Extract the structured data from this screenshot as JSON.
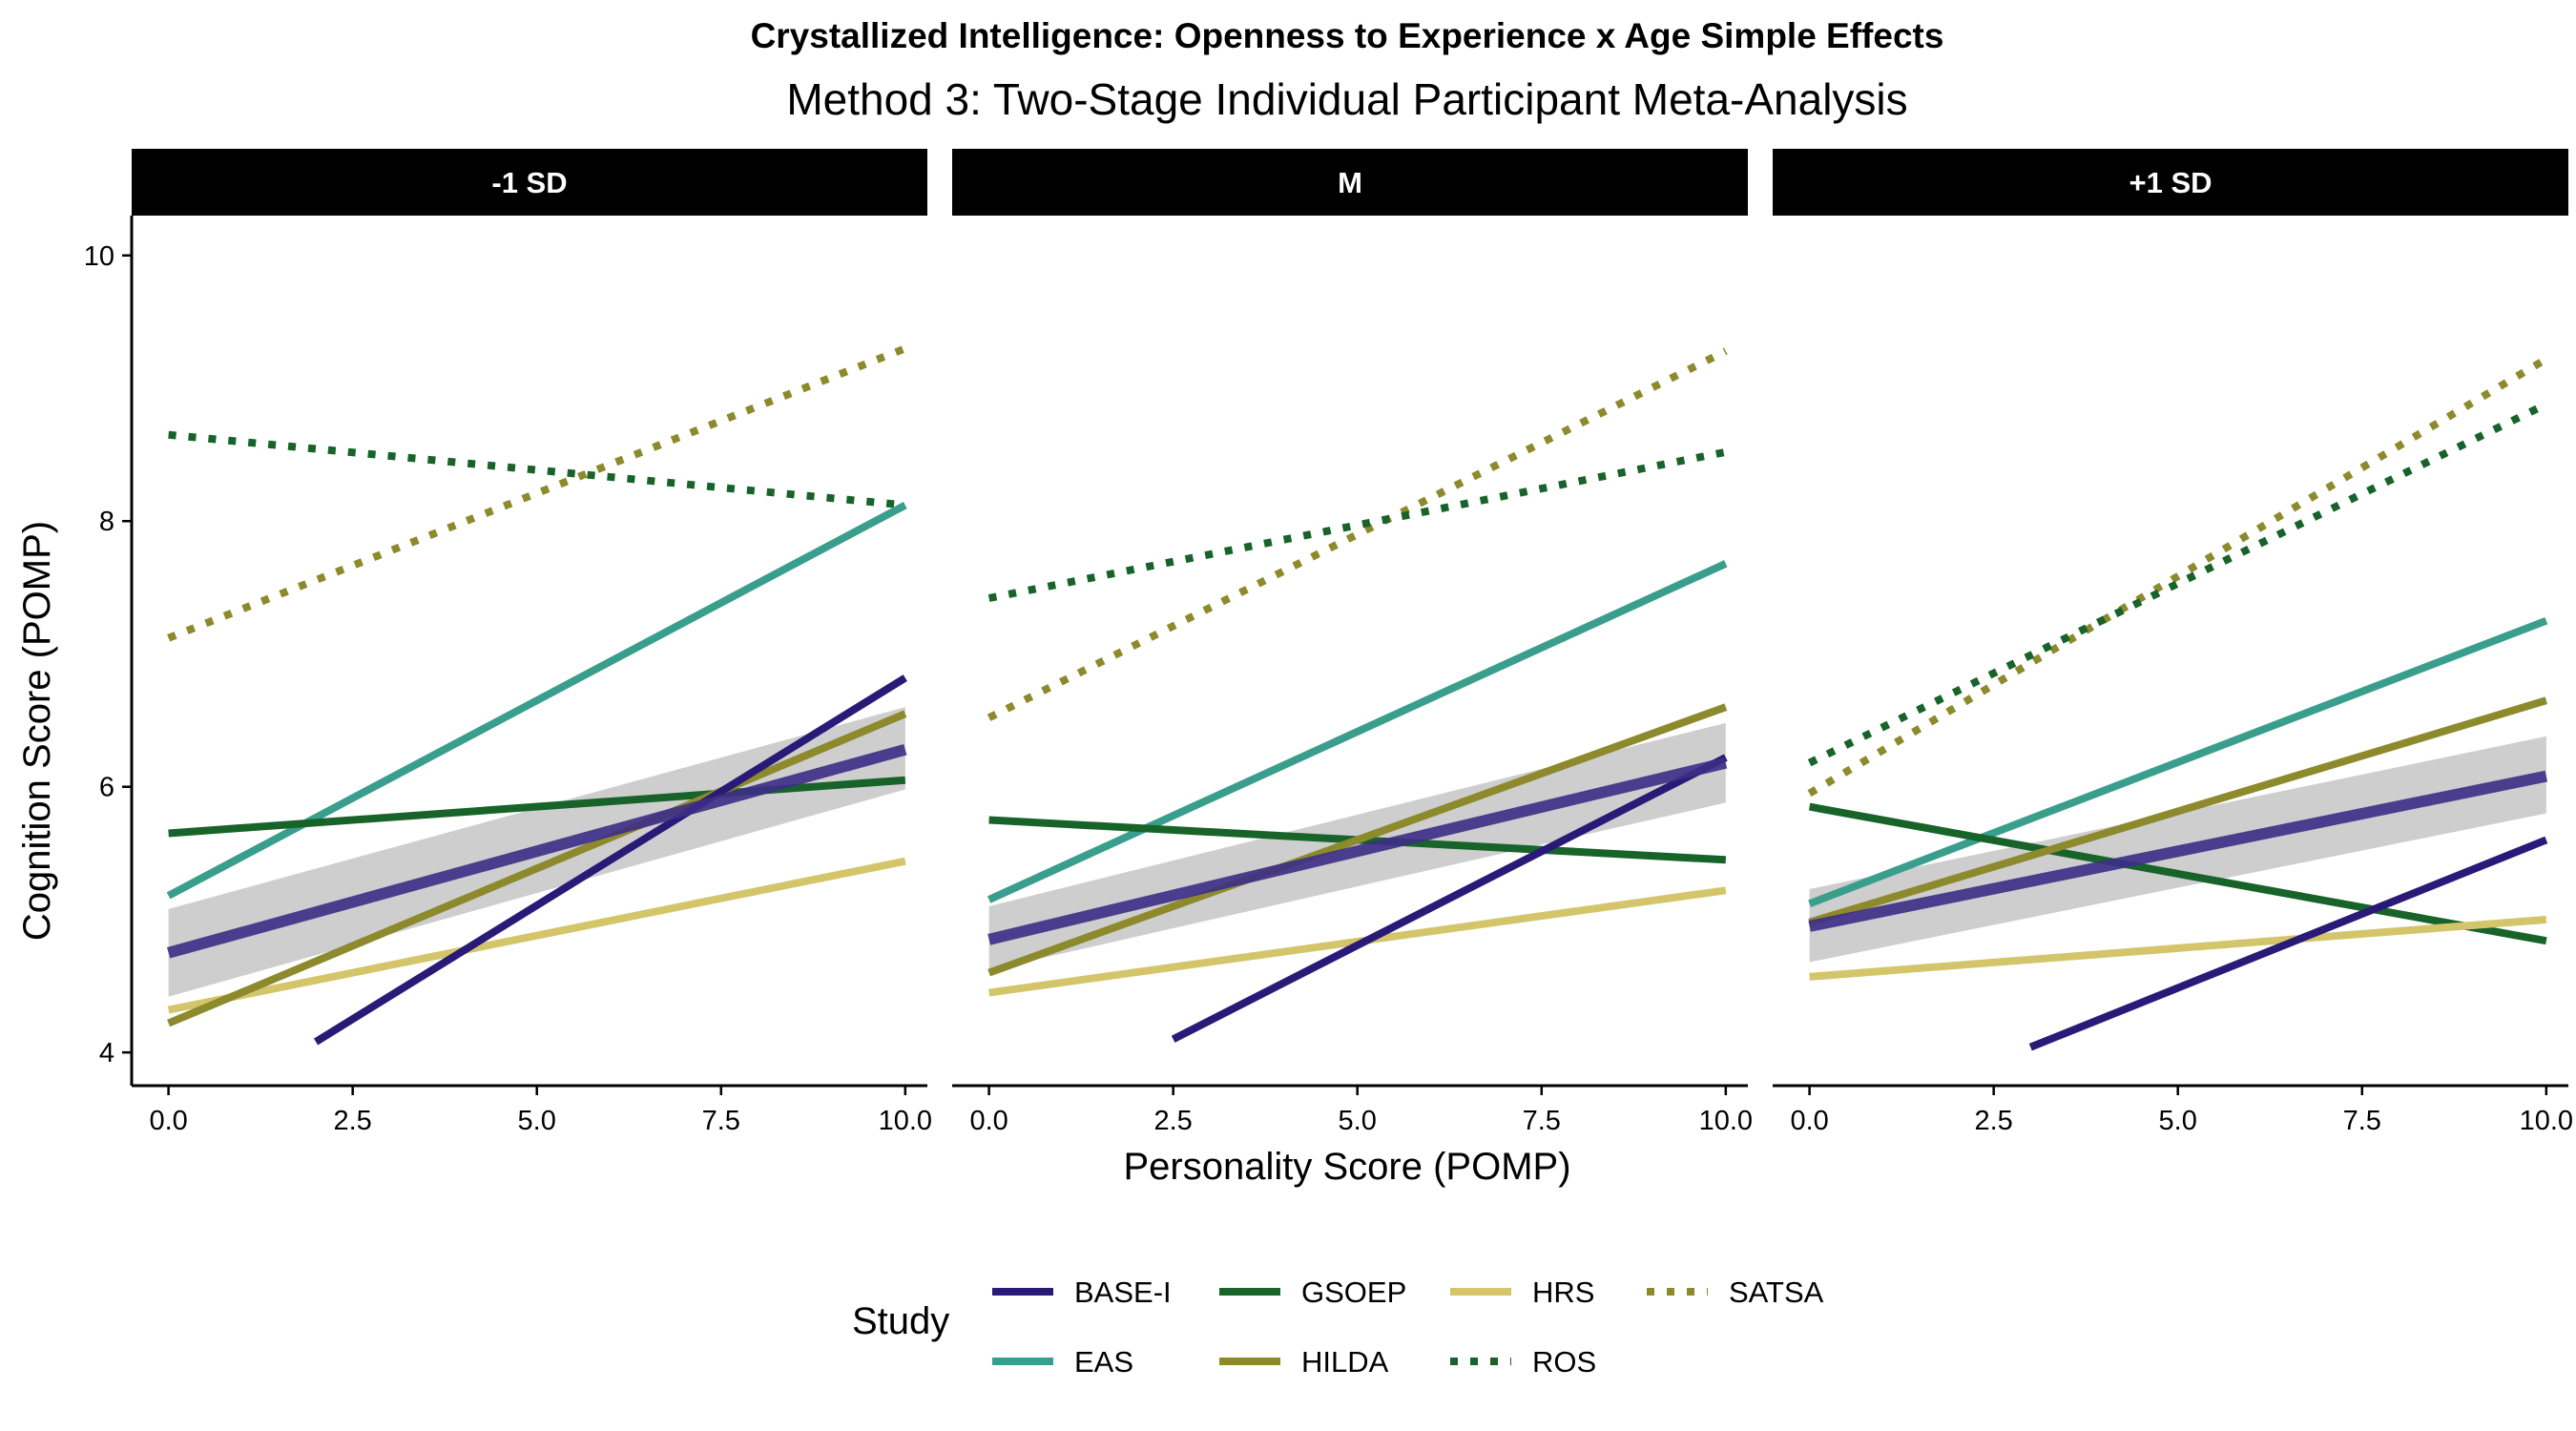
{
  "chart_data": {
    "type": "line",
    "title": "Crystallized Intelligence: Openness to Experience x Age Simple Effects",
    "subtitle": "Method 3: Two-Stage Individual Participant Meta-Analysis",
    "xlabel": "Personality Score (POMP)",
    "ylabel": "Cognition Score (POMP)",
    "xlim": [
      -0.5,
      10.3
    ],
    "ylim": [
      3.75,
      10.3
    ],
    "x_ticks": [
      "0.0",
      "2.5",
      "5.0",
      "7.5",
      "10.0"
    ],
    "x_tick_values": [
      0,
      2.5,
      5,
      7.5,
      10
    ],
    "y_ticks": [
      "4",
      "6",
      "8",
      "10"
    ],
    "y_tick_values": [
      4,
      6,
      8,
      10
    ],
    "grid": false,
    "legend": {
      "title": "Study",
      "position": "bottom",
      "entries": [
        {
          "name": "BASE-I",
          "color": "#2a1a78",
          "style": "solid"
        },
        {
          "name": "GSOEP",
          "color": "#17632a",
          "style": "solid"
        },
        {
          "name": "HRS",
          "color": "#d4c56a",
          "style": "solid"
        },
        {
          "name": "SATSA",
          "color": "#8c8a2c",
          "style": "dotted"
        },
        {
          "name": "EAS",
          "color": "#3a9e8c",
          "style": "solid"
        },
        {
          "name": "HILDA",
          "color": "#8c8a2c",
          "style": "solid"
        },
        {
          "name": "ROS",
          "color": "#17632a",
          "style": "dotted"
        }
      ]
    },
    "panels": [
      {
        "label": "-1 SD",
        "series": [
          {
            "name": "SATSA",
            "x": [
              0,
              10
            ],
            "y": [
              7.12,
              9.3
            ]
          },
          {
            "name": "ROS",
            "x": [
              0,
              10
            ],
            "y": [
              8.65,
              8.12
            ]
          },
          {
            "name": "EAS",
            "x": [
              0,
              10
            ],
            "y": [
              5.18,
              8.12
            ]
          },
          {
            "name": "GSOEP",
            "x": [
              0,
              10
            ],
            "y": [
              5.65,
              6.05
            ]
          },
          {
            "name": "HRS",
            "x": [
              0,
              10
            ],
            "y": [
              4.32,
              5.44
            ]
          },
          {
            "name": "HILDA",
            "x": [
              0,
              10
            ],
            "y": [
              4.22,
              6.55
            ]
          },
          {
            "name": "BASE-I",
            "x": [
              2,
              10
            ],
            "y": [
              4.08,
              6.82
            ]
          }
        ],
        "pooled": {
          "x": [
            0,
            10
          ],
          "y": [
            4.75,
            6.28
          ],
          "ci_low": [
            4.42,
            5.98
          ],
          "ci_high": [
            5.08,
            6.6
          ]
        }
      },
      {
        "label": "M",
        "series": [
          {
            "name": "SATSA",
            "x": [
              0,
              10
            ],
            "y": [
              6.52,
              9.28
            ]
          },
          {
            "name": "ROS",
            "x": [
              0,
              10
            ],
            "y": [
              7.42,
              8.52
            ]
          },
          {
            "name": "EAS",
            "x": [
              0,
              10
            ],
            "y": [
              5.15,
              7.68
            ]
          },
          {
            "name": "GSOEP",
            "x": [
              0,
              10
            ],
            "y": [
              5.75,
              5.45
            ]
          },
          {
            "name": "HRS",
            "x": [
              0,
              10
            ],
            "y": [
              4.45,
              5.22
            ]
          },
          {
            "name": "HILDA",
            "x": [
              0,
              10
            ],
            "y": [
              4.6,
              6.6
            ]
          },
          {
            "name": "BASE-I",
            "x": [
              2.5,
              10
            ],
            "y": [
              4.1,
              6.22
            ]
          }
        ],
        "pooled": {
          "x": [
            0,
            10
          ],
          "y": [
            4.85,
            6.18
          ],
          "ci_low": [
            4.62,
            5.88
          ],
          "ci_high": [
            5.1,
            6.48
          ]
        }
      },
      {
        "label": "+1 SD",
        "series": [
          {
            "name": "SATSA",
            "x": [
              0,
              10
            ],
            "y": [
              5.95,
              9.22
            ]
          },
          {
            "name": "ROS",
            "x": [
              0,
              10
            ],
            "y": [
              6.18,
              8.88
            ]
          },
          {
            "name": "EAS",
            "x": [
              0,
              10
            ],
            "y": [
              5.12,
              7.25
            ]
          },
          {
            "name": "GSOEP",
            "x": [
              0,
              10
            ],
            "y": [
              5.85,
              4.84
            ]
          },
          {
            "name": "HRS",
            "x": [
              0,
              10
            ],
            "y": [
              4.57,
              5.0
            ]
          },
          {
            "name": "HILDA",
            "x": [
              0,
              10
            ],
            "y": [
              4.98,
              6.65
            ]
          },
          {
            "name": "BASE-I",
            "x": [
              3,
              10
            ],
            "y": [
              4.04,
              5.6
            ]
          }
        ],
        "pooled": {
          "x": [
            0,
            10
          ],
          "y": [
            4.95,
            6.08
          ],
          "ci_low": [
            4.68,
            5.8
          ],
          "ci_high": [
            5.23,
            6.38
          ]
        }
      }
    ],
    "pooled_style": {
      "color": "#3d2e86",
      "ci_color": "#bdbdbd"
    }
  }
}
